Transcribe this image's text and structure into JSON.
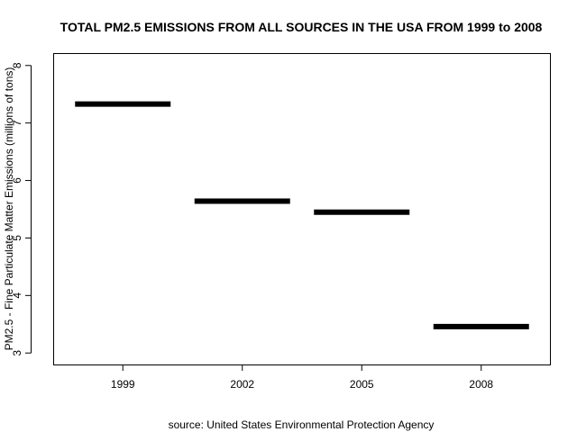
{
  "chart_data": {
    "type": "segment",
    "title": "TOTAL PM2.5 EMISSIONS FROM ALL SOURCES IN THE USA FROM 1999 to 2008",
    "xlabel": "source: United States Environmental Protection Agency",
    "ylabel": "PM2.5 - Fine Particulate Matter Emissions (millions of tons)",
    "categories": [
      "1999",
      "2002",
      "2005",
      "2008"
    ],
    "values": [
      7.33,
      5.64,
      5.45,
      3.46
    ],
    "ylim": [
      2.8,
      8.2
    ],
    "yticks": [
      "3",
      "4",
      "5",
      "6",
      "7",
      "8"
    ],
    "grid": false,
    "legend": "none",
    "mark_color": "#000000"
  }
}
